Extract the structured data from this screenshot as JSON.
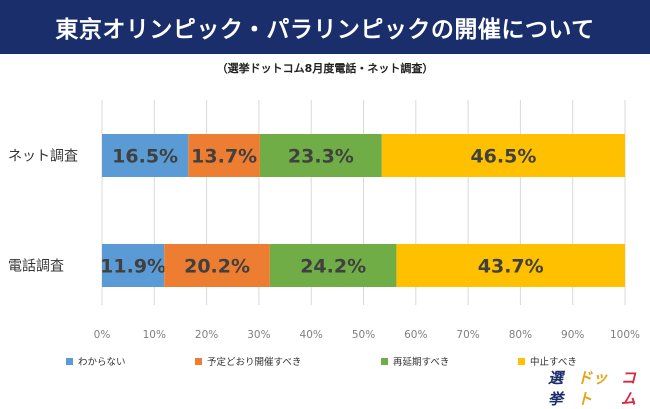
{
  "header": {
    "title": "東京オリンピック・パラリンピックの開催について",
    "subtitle": "（選挙ドットコム8月度電話・ネット調査）"
  },
  "chart_data": {
    "type": "bar",
    "orientation": "horizontal",
    "stacked": true,
    "unit": "%",
    "categories": [
      "ネット調査",
      "電話調査"
    ],
    "series": [
      {
        "name": "わからない",
        "color": "#5b9bd5",
        "values": [
          16.5,
          11.9
        ],
        "labels": [
          "16.5%",
          "11.9%"
        ]
      },
      {
        "name": "予定どおり開催すべき",
        "color": "#ed7d31",
        "values": [
          13.7,
          20.2
        ],
        "labels": [
          "13.7%",
          "20.2%"
        ]
      },
      {
        "name": "再延期すべき",
        "color": "#70ad47",
        "values": [
          23.3,
          24.2
        ],
        "labels": [
          "23.3%",
          "24.2%"
        ]
      },
      {
        "name": "中止すべき",
        "color": "#ffc000",
        "values": [
          46.5,
          43.7
        ],
        "labels": [
          "46.5%",
          "43.7%"
        ]
      }
    ],
    "xlim": [
      0,
      100
    ],
    "xticks": [
      "0%",
      "10%",
      "20%",
      "30%",
      "40%",
      "50%",
      "60%",
      "70%",
      "80%",
      "90%",
      "100%"
    ],
    "grid": true,
    "legend_position": "bottom"
  },
  "logo": {
    "parts": [
      {
        "text": "選挙",
        "color": "#1a2e6c"
      },
      {
        "text": "ドット",
        "color": "#e8a317"
      },
      {
        "text": "コム",
        "color": "#d9273d"
      }
    ]
  }
}
